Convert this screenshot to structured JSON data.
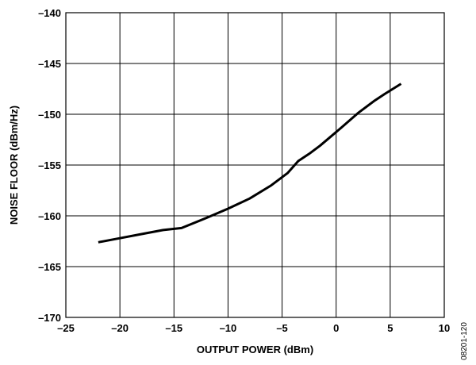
{
  "chart_data": {
    "type": "line",
    "title": "",
    "xlabel": "OUTPUT POWER (dBm)",
    "ylabel": "NOISE FLOOR (dBm/Hz)",
    "xlim": [
      -25,
      10
    ],
    "ylim": [
      -170,
      -140
    ],
    "x_ticks": [
      -25,
      -20,
      -15,
      -10,
      -5,
      0,
      5,
      10
    ],
    "y_ticks": [
      -140,
      -145,
      -150,
      -155,
      -160,
      -165,
      -170
    ],
    "x_tick_labels": [
      "–25",
      "–20",
      "–15",
      "–10",
      "–5",
      "0",
      "5",
      "10"
    ],
    "y_tick_labels": [
      "–140",
      "–145",
      "–150",
      "–155",
      "–160",
      "–165",
      "–170"
    ],
    "grid": true,
    "legend": "none",
    "series": [
      {
        "color": "#000000",
        "x": [
          -22,
          -20,
          -18,
          -16,
          -14.3,
          -12,
          -10,
          -8,
          -6,
          -4.5,
          -3.5,
          -2.5,
          -1.5,
          -0.5,
          0.5,
          2,
          3.5,
          4.5,
          6
        ],
        "y": [
          -162.6,
          -162.2,
          -161.8,
          -161.4,
          -161.2,
          -160.2,
          -159.3,
          -158.3,
          -157.0,
          -155.8,
          -154.6,
          -153.9,
          -153.1,
          -152.2,
          -151.3,
          -149.9,
          -148.7,
          -148.0,
          -147.0
        ]
      }
    ]
  },
  "figure_code": "08201-120"
}
